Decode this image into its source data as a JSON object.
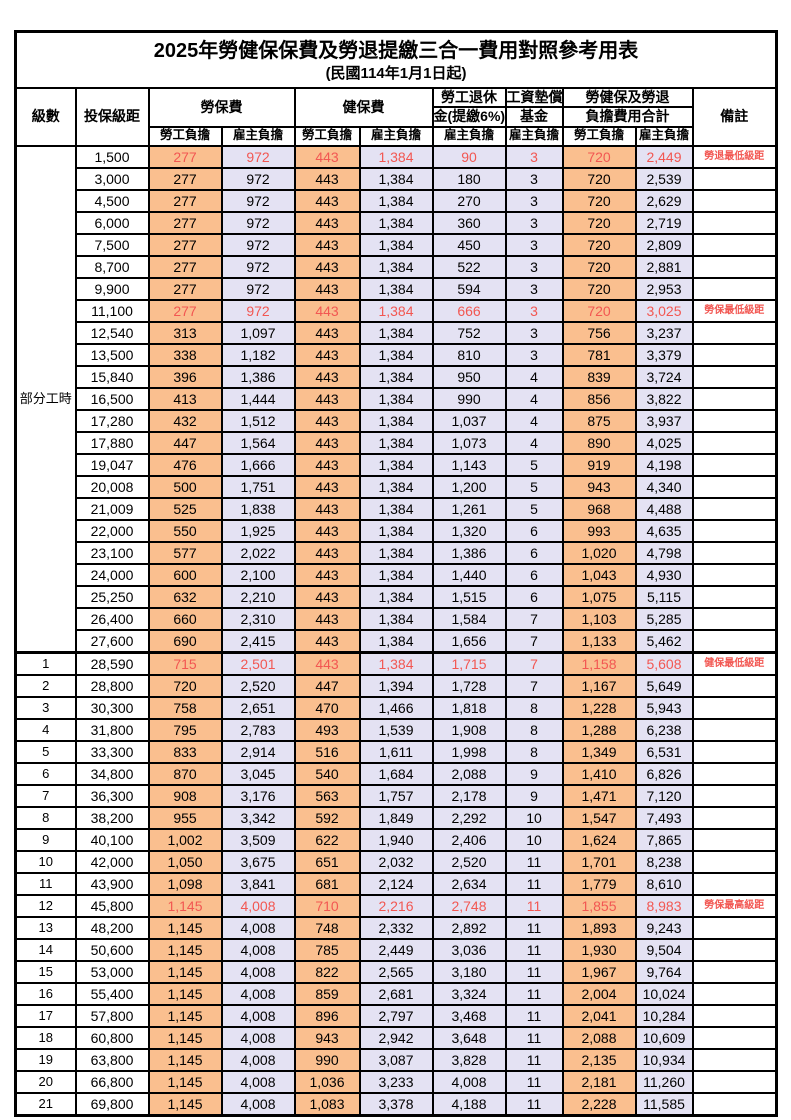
{
  "title": "2025年勞健保保費及勞退提繳三合一費用對照參考用表",
  "subtitle": "(民國114年1月1日起)",
  "header": {
    "level": "級數",
    "bracket": "投保級距",
    "labor": "勞保費",
    "health": "健保費",
    "pension_line1": "勞工退休",
    "pension_line2": "金(提繳6%)",
    "fund_line1": "工資墊償",
    "fund_line2": "基金",
    "total_line1": "勞健保及勞退",
    "total_line2": "負擔費用合計",
    "note": "備註",
    "employee": "勞工負擔",
    "employer": "雇主負擔"
  },
  "part_time_label": "部分工時",
  "part_time_rowspan": 23,
  "colors": {
    "employee_bg": "#FABF8F",
    "employer_bg": "#E4E2F3",
    "highlight_red": "#F25752",
    "border": "#000000"
  },
  "rows": [
    {
      "level": null,
      "values": [
        "1,500",
        "277",
        "972",
        "443",
        "1,384",
        "90",
        "3",
        "720",
        "2,449"
      ],
      "note": "勞退最低級距",
      "red": true
    },
    {
      "level": null,
      "values": [
        "3,000",
        "277",
        "972",
        "443",
        "1,384",
        "180",
        "3",
        "720",
        "2,539"
      ],
      "note": "",
      "red": false
    },
    {
      "level": null,
      "values": [
        "4,500",
        "277",
        "972",
        "443",
        "1,384",
        "270",
        "3",
        "720",
        "2,629"
      ],
      "note": "",
      "red": false
    },
    {
      "level": null,
      "values": [
        "6,000",
        "277",
        "972",
        "443",
        "1,384",
        "360",
        "3",
        "720",
        "2,719"
      ],
      "note": "",
      "red": false
    },
    {
      "level": null,
      "values": [
        "7,500",
        "277",
        "972",
        "443",
        "1,384",
        "450",
        "3",
        "720",
        "2,809"
      ],
      "note": "",
      "red": false
    },
    {
      "level": null,
      "values": [
        "8,700",
        "277",
        "972",
        "443",
        "1,384",
        "522",
        "3",
        "720",
        "2,881"
      ],
      "note": "",
      "red": false
    },
    {
      "level": null,
      "values": [
        "9,900",
        "277",
        "972",
        "443",
        "1,384",
        "594",
        "3",
        "720",
        "2,953"
      ],
      "note": "",
      "red": false
    },
    {
      "level": null,
      "values": [
        "11,100",
        "277",
        "972",
        "443",
        "1,384",
        "666",
        "3",
        "720",
        "3,025"
      ],
      "note": "勞保最低級距",
      "red": true
    },
    {
      "level": null,
      "values": [
        "12,540",
        "313",
        "1,097",
        "443",
        "1,384",
        "752",
        "3",
        "756",
        "3,237"
      ],
      "note": "",
      "red": false
    },
    {
      "level": null,
      "values": [
        "13,500",
        "338",
        "1,182",
        "443",
        "1,384",
        "810",
        "3",
        "781",
        "3,379"
      ],
      "note": "",
      "red": false
    },
    {
      "level": null,
      "values": [
        "15,840",
        "396",
        "1,386",
        "443",
        "1,384",
        "950",
        "4",
        "839",
        "3,724"
      ],
      "note": "",
      "red": false
    },
    {
      "level": null,
      "values": [
        "16,500",
        "413",
        "1,444",
        "443",
        "1,384",
        "990",
        "4",
        "856",
        "3,822"
      ],
      "note": "",
      "red": false
    },
    {
      "level": null,
      "values": [
        "17,280",
        "432",
        "1,512",
        "443",
        "1,384",
        "1,037",
        "4",
        "875",
        "3,937"
      ],
      "note": "",
      "red": false
    },
    {
      "level": null,
      "values": [
        "17,880",
        "447",
        "1,564",
        "443",
        "1,384",
        "1,073",
        "4",
        "890",
        "4,025"
      ],
      "note": "",
      "red": false
    },
    {
      "level": null,
      "values": [
        "19,047",
        "476",
        "1,666",
        "443",
        "1,384",
        "1,143",
        "5",
        "919",
        "4,198"
      ],
      "note": "",
      "red": false
    },
    {
      "level": null,
      "values": [
        "20,008",
        "500",
        "1,751",
        "443",
        "1,384",
        "1,200",
        "5",
        "943",
        "4,340"
      ],
      "note": "",
      "red": false
    },
    {
      "level": null,
      "values": [
        "21,009",
        "525",
        "1,838",
        "443",
        "1,384",
        "1,261",
        "5",
        "968",
        "4,488"
      ],
      "note": "",
      "red": false
    },
    {
      "level": null,
      "values": [
        "22,000",
        "550",
        "1,925",
        "443",
        "1,384",
        "1,320",
        "6",
        "993",
        "4,635"
      ],
      "note": "",
      "red": false
    },
    {
      "level": null,
      "values": [
        "23,100",
        "577",
        "2,022",
        "443",
        "1,384",
        "1,386",
        "6",
        "1,020",
        "4,798"
      ],
      "note": "",
      "red": false
    },
    {
      "level": null,
      "values": [
        "24,000",
        "600",
        "2,100",
        "443",
        "1,384",
        "1,440",
        "6",
        "1,043",
        "4,930"
      ],
      "note": "",
      "red": false
    },
    {
      "level": null,
      "values": [
        "25,250",
        "632",
        "2,210",
        "443",
        "1,384",
        "1,515",
        "6",
        "1,075",
        "5,115"
      ],
      "note": "",
      "red": false
    },
    {
      "level": null,
      "values": [
        "26,400",
        "660",
        "2,310",
        "443",
        "1,384",
        "1,584",
        "7",
        "1,103",
        "5,285"
      ],
      "note": "",
      "red": false
    },
    {
      "level": null,
      "values": [
        "27,600",
        "690",
        "2,415",
        "443",
        "1,384",
        "1,656",
        "7",
        "1,133",
        "5,462"
      ],
      "note": "",
      "red": false
    },
    {
      "level": "1",
      "values": [
        "28,590",
        "715",
        "2,501",
        "443",
        "1,384",
        "1,715",
        "7",
        "1,158",
        "5,608"
      ],
      "note": "健保最低級距",
      "red": true,
      "section_start": true
    },
    {
      "level": "2",
      "values": [
        "28,800",
        "720",
        "2,520",
        "447",
        "1,394",
        "1,728",
        "7",
        "1,167",
        "5,649"
      ],
      "note": "",
      "red": false
    },
    {
      "level": "3",
      "values": [
        "30,300",
        "758",
        "2,651",
        "470",
        "1,466",
        "1,818",
        "8",
        "1,228",
        "5,943"
      ],
      "note": "",
      "red": false
    },
    {
      "level": "4",
      "values": [
        "31,800",
        "795",
        "2,783",
        "493",
        "1,539",
        "1,908",
        "8",
        "1,288",
        "6,238"
      ],
      "note": "",
      "red": false
    },
    {
      "level": "5",
      "values": [
        "33,300",
        "833",
        "2,914",
        "516",
        "1,611",
        "1,998",
        "8",
        "1,349",
        "6,531"
      ],
      "note": "",
      "red": false
    },
    {
      "level": "6",
      "values": [
        "34,800",
        "870",
        "3,045",
        "540",
        "1,684",
        "2,088",
        "9",
        "1,410",
        "6,826"
      ],
      "note": "",
      "red": false
    },
    {
      "level": "7",
      "values": [
        "36,300",
        "908",
        "3,176",
        "563",
        "1,757",
        "2,178",
        "9",
        "1,471",
        "7,120"
      ],
      "note": "",
      "red": false
    },
    {
      "level": "8",
      "values": [
        "38,200",
        "955",
        "3,342",
        "592",
        "1,849",
        "2,292",
        "10",
        "1,547",
        "7,493"
      ],
      "note": "",
      "red": false
    },
    {
      "level": "9",
      "values": [
        "40,100",
        "1,002",
        "3,509",
        "622",
        "1,940",
        "2,406",
        "10",
        "1,624",
        "7,865"
      ],
      "note": "",
      "red": false
    },
    {
      "level": "10",
      "values": [
        "42,000",
        "1,050",
        "3,675",
        "651",
        "2,032",
        "2,520",
        "11",
        "1,701",
        "8,238"
      ],
      "note": "",
      "red": false
    },
    {
      "level": "11",
      "values": [
        "43,900",
        "1,098",
        "3,841",
        "681",
        "2,124",
        "2,634",
        "11",
        "1,779",
        "8,610"
      ],
      "note": "",
      "red": false
    },
    {
      "level": "12",
      "values": [
        "45,800",
        "1,145",
        "4,008",
        "710",
        "2,216",
        "2,748",
        "11",
        "1,855",
        "8,983"
      ],
      "note": "勞保最高級距",
      "red": true
    },
    {
      "level": "13",
      "values": [
        "48,200",
        "1,145",
        "4,008",
        "748",
        "2,332",
        "2,892",
        "11",
        "1,893",
        "9,243"
      ],
      "note": "",
      "red": false
    },
    {
      "level": "14",
      "values": [
        "50,600",
        "1,145",
        "4,008",
        "785",
        "2,449",
        "3,036",
        "11",
        "1,930",
        "9,504"
      ],
      "note": "",
      "red": false
    },
    {
      "level": "15",
      "values": [
        "53,000",
        "1,145",
        "4,008",
        "822",
        "2,565",
        "3,180",
        "11",
        "1,967",
        "9,764"
      ],
      "note": "",
      "red": false
    },
    {
      "level": "16",
      "values": [
        "55,400",
        "1,145",
        "4,008",
        "859",
        "2,681",
        "3,324",
        "11",
        "2,004",
        "10,024"
      ],
      "note": "",
      "red": false
    },
    {
      "level": "17",
      "values": [
        "57,800",
        "1,145",
        "4,008",
        "896",
        "2,797",
        "3,468",
        "11",
        "2,041",
        "10,284"
      ],
      "note": "",
      "red": false
    },
    {
      "level": "18",
      "values": [
        "60,800",
        "1,145",
        "4,008",
        "943",
        "2,942",
        "3,648",
        "11",
        "2,088",
        "10,609"
      ],
      "note": "",
      "red": false
    },
    {
      "level": "19",
      "values": [
        "63,800",
        "1,145",
        "4,008",
        "990",
        "3,087",
        "3,828",
        "11",
        "2,135",
        "10,934"
      ],
      "note": "",
      "red": false
    },
    {
      "level": "20",
      "values": [
        "66,800",
        "1,145",
        "4,008",
        "1,036",
        "3,233",
        "4,008",
        "11",
        "2,181",
        "11,260"
      ],
      "note": "",
      "red": false
    },
    {
      "level": "21",
      "values": [
        "69,800",
        "1,145",
        "4,008",
        "1,083",
        "3,378",
        "4,188",
        "11",
        "2,228",
        "11,585"
      ],
      "note": "",
      "red": false
    }
  ]
}
